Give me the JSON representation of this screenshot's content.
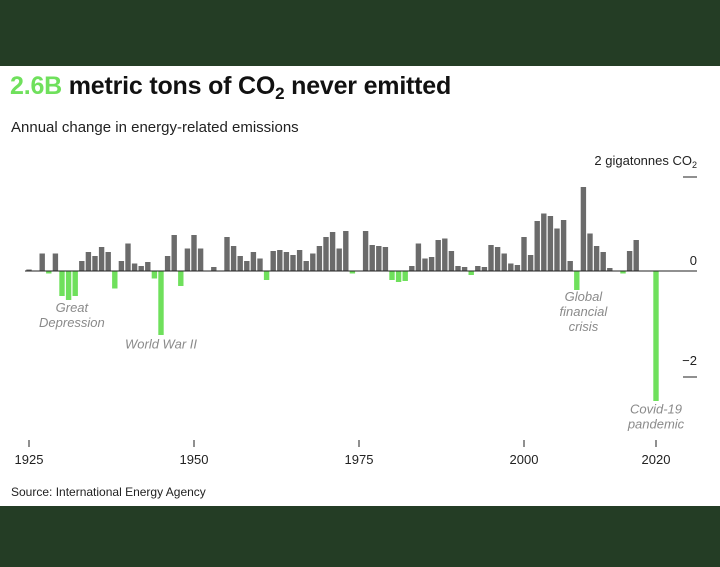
{
  "header": {
    "title_highlight": "2.6B",
    "title_main": "metric tons of CO",
    "title_sub": "2",
    "title_end": "never emitted",
    "subtitle": "Annual change in energy-related emissions",
    "source": "Source: International Energy Agency"
  },
  "colors": {
    "background": "#243d25",
    "card": "#ffffff",
    "increase": "#6b6b6b",
    "decrease": "#6fe05c",
    "annotation": "#8a8a8a"
  },
  "chart_data": {
    "type": "bar",
    "title": "",
    "xlabel": "",
    "ylabel": "",
    "xlim": [
      1925,
      2022
    ],
    "ylim": [
      -2.6,
      1.7
    ],
    "x_ticks": [
      1925,
      1950,
      1975,
      2000,
      2020
    ],
    "y_ticks": [
      {
        "value": 2,
        "label": "2 gigatonnes CO",
        "sub": "2"
      },
      {
        "value": 0,
        "label": "0",
        "sub": ""
      },
      {
        "value": -2,
        "label": "−2",
        "sub": ""
      }
    ],
    "years": [
      1925,
      1926,
      1927,
      1928,
      1929,
      1930,
      1931,
      1932,
      1933,
      1934,
      1935,
      1936,
      1937,
      1938,
      1939,
      1940,
      1941,
      1942,
      1943,
      1944,
      1945,
      1946,
      1947,
      1948,
      1949,
      1950,
      1951,
      1952,
      1953,
      1954,
      1955,
      1956,
      1957,
      1958,
      1959,
      1960,
      1961,
      1962,
      1963,
      1964,
      1965,
      1966,
      1967,
      1968,
      1969,
      1970,
      1971,
      1972,
      1973,
      1974,
      1975,
      1976,
      1977,
      1978,
      1979,
      1980,
      1981,
      1982,
      1983,
      1984,
      1985,
      1986,
      1987,
      1988,
      1989,
      1990,
      1991,
      1992,
      1993,
      1994,
      1995,
      1996,
      1997,
      1998,
      1999,
      2000,
      2001,
      2002,
      2003,
      2004,
      2005,
      2006,
      2007,
      2008,
      2009,
      2010,
      2011,
      2012,
      2013,
      2014,
      2015,
      2016,
      2017,
      2018,
      2019,
      2020
    ],
    "values": [
      0.03,
      0.0,
      0.35,
      -0.05,
      0.35,
      -0.5,
      -0.58,
      -0.5,
      0.2,
      0.38,
      0.3,
      0.48,
      0.38,
      -0.35,
      0.2,
      0.55,
      0.15,
      0.1,
      0.18,
      -0.15,
      -1.28,
      0.3,
      0.72,
      -0.3,
      0.45,
      0.72,
      0.45,
      0.0,
      0.08,
      0.0,
      0.68,
      0.5,
      0.3,
      0.2,
      0.38,
      0.25,
      -0.18,
      0.4,
      0.42,
      0.38,
      0.32,
      0.42,
      0.2,
      0.35,
      0.5,
      0.68,
      0.78,
      0.45,
      0.8,
      -0.05,
      0.0,
      0.8,
      0.52,
      0.5,
      0.48,
      -0.18,
      -0.22,
      -0.2,
      0.1,
      0.55,
      0.25,
      0.28,
      0.62,
      0.65,
      0.4,
      0.1,
      0.08,
      -0.08,
      0.1,
      0.08,
      0.52,
      0.48,
      0.35,
      0.15,
      0.12,
      0.68,
      0.32,
      1.0,
      1.15,
      1.1,
      0.85,
      1.02,
      0.2,
      -0.38,
      1.68,
      0.75,
      0.5,
      0.38,
      0.06,
      0.0,
      -0.05,
      0.4,
      0.62,
      0.0,
      0.0,
      -2.6
    ],
    "annotations": [
      {
        "lines": [
          "Great",
          "Depression"
        ],
        "year": 1931.5,
        "value": -0.82
      },
      {
        "lines": [
          "World War II"
        ],
        "year": 1945,
        "value": -1.55
      },
      {
        "lines": [
          "Global",
          "financial",
          "crisis"
        ],
        "year": 2009,
        "value": -0.6
      },
      {
        "lines": [
          "Covid-19",
          "pandemic"
        ],
        "year": 2020,
        "value": -2.85
      }
    ]
  }
}
